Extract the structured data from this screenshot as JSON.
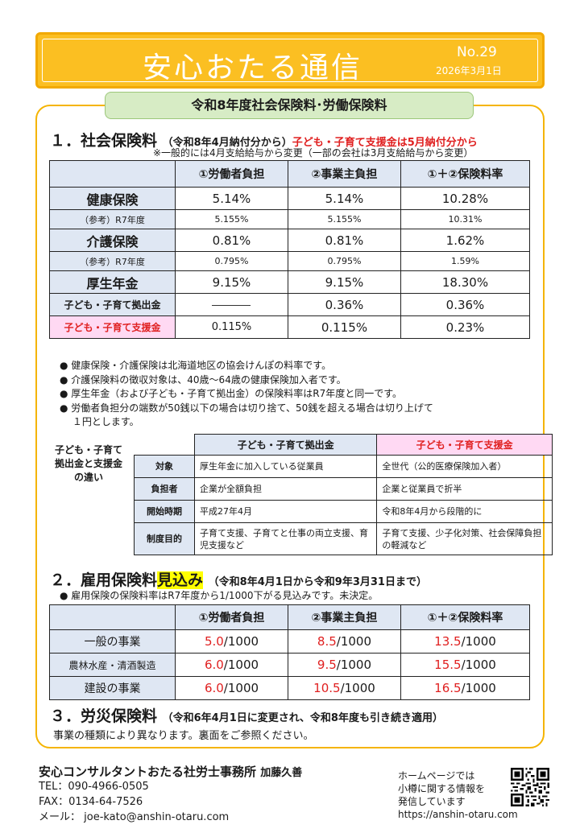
{
  "header": {
    "title": "安心おたる通信",
    "no": "No.29",
    "date": "2026年3月1日"
  },
  "banner": "令和8年度社会保険料･労働保険料",
  "s1": {
    "title": "１．社会保険料",
    "sub": "（令和8年4月納付分から）",
    "sub_red": "子ども・子育て支援金は5月納付分から",
    "note": "※一般的には4月支給給与から変更（一部の会社は3月支給給与から変更）",
    "headers": [
      "①労働者負担",
      "②事業主負担",
      "①＋②保険料率"
    ],
    "health": {
      "label": "健康保険",
      "v": [
        "5.14%",
        "5.14%",
        "10.28%"
      ]
    },
    "health_ref": {
      "label": "（参考）R7年度",
      "v": [
        "5.155%",
        "5.155%",
        "10.31%"
      ]
    },
    "care": {
      "label": "介護保険",
      "v": [
        "0.81%",
        "0.81%",
        "1.62%"
      ]
    },
    "care_ref": {
      "label": "（参考）R7年度",
      "v": [
        "0.795%",
        "0.795%",
        "1.59%"
      ]
    },
    "pension": {
      "label": "厚生年金",
      "v": [
        "9.15%",
        "9.15%",
        "18.30%"
      ]
    },
    "kyoshutsu": {
      "label": "子ども・子育て拠出金",
      "v": [
        "",
        "0.36%",
        "0.36%"
      ]
    },
    "shienkin": {
      "label": "子ども・子育て支援金",
      "v": [
        "0.115%",
        "0.115%",
        "0.23%"
      ]
    },
    "bullets": [
      "●  健康保険・介護保険は北海道地区の協会けんぽの料率です。",
      "●  介護保険料の徴収対象は、40歳～64歳の健康保険加入者です。",
      "●  厚生年金（および子ども・子育て拠出金）の保険料率はR7年度と同一です。",
      "●  労働者負担分の端数が50銭以下の場合は切り捨て、50銭を超える場合は切り上げて",
      "　 １円とします。"
    ]
  },
  "compare": {
    "caption": [
      "子ども・子育て",
      "拠出金と支援金",
      "の違い"
    ],
    "col1": "子ども・子育て拠出金",
    "col2": "子ども・子育て支援金",
    "rows": [
      {
        "label": "対象",
        "a": "厚生年金に加入している従業員",
        "b": "全世代（公的医療保険加入者）"
      },
      {
        "label": "負担者",
        "a": "企業が全額負担",
        "b": "企業と従業員で折半"
      },
      {
        "label": "開始時期",
        "a": "平成27年4月",
        "b": "令和8年4月から段階的に"
      },
      {
        "label": "制度目的",
        "a": "子育て支援、子育てと仕事の両立支援、育児支援など",
        "b": "子育て支援、少子化対策、社会保障負担の軽減など"
      }
    ]
  },
  "s2": {
    "title": "２．雇用保険料",
    "title_hl": "見込み",
    "sub": "（令和8年4月1日から令和9年3月31日まで）",
    "bullet": "●  雇用保険の保険料率はR7年度から1/1000下がる見込みです。未決定。",
    "headers": [
      "①労働者負担",
      "②事業主負担",
      "①＋②保険料率"
    ],
    "denom": "/1000",
    "rows": [
      {
        "label": "一般の事業",
        "v": [
          "5.0",
          "8.5",
          "13.5"
        ]
      },
      {
        "label": "農林水産・清酒製造",
        "v": [
          "6.0",
          "9.5",
          "15.5"
        ]
      },
      {
        "label": "建設の事業",
        "v": [
          "6.0",
          "10.5",
          "16.5"
        ]
      }
    ]
  },
  "s3": {
    "title": "３．労災保険料",
    "sub": "（令和6年4月1日に変更され、令和8年度も引き続き適用）",
    "text": "事業の種類により異なります。裏面をご参照ください。"
  },
  "footer": {
    "office": "安心コンサルタントおたる社労士事務所",
    "name": "加藤久善",
    "tel": "TEL：090-4966-0505",
    "fax": "FAX：0134-64-7526",
    "mail": "メール：  joe-kato@anshin-otaru.com",
    "hp": [
      "ホームページでは",
      "小樽に関する情報を",
      "発信しています",
      "https://anshin-otaru.com"
    ]
  }
}
